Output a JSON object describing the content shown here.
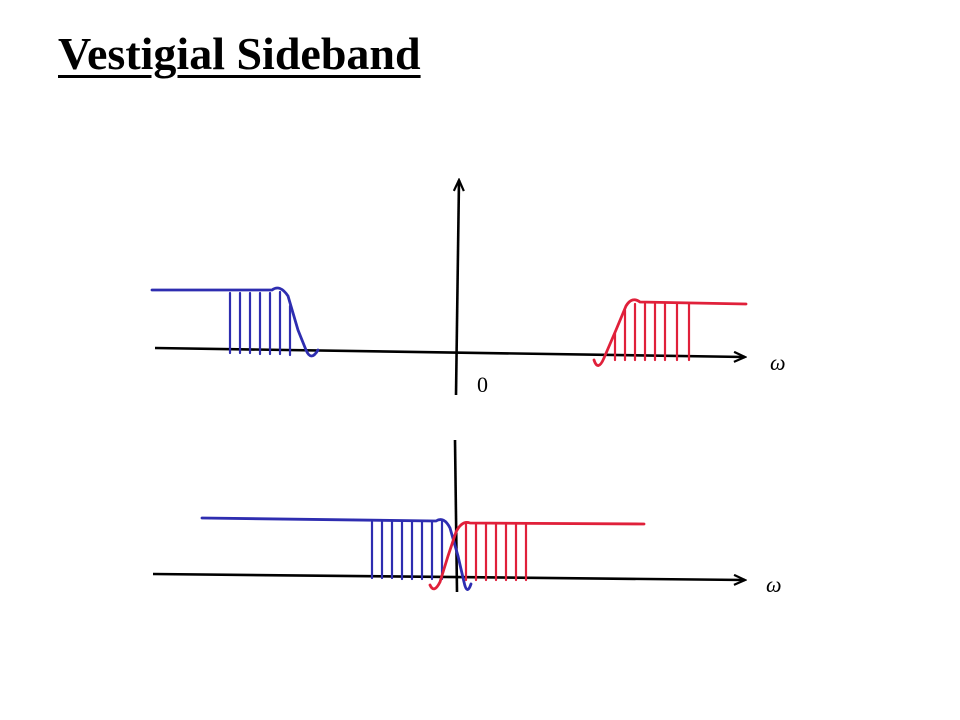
{
  "title": "Vestigial Sideband",
  "top_plot": {
    "origin_label": "0",
    "x_axis_label": "ω"
  },
  "bottom_plot": {
    "x_axis_label": "ω"
  },
  "colors": {
    "negative_band": "#2e2db0",
    "positive_band": "#e0203a",
    "axes": "#000000"
  }
}
